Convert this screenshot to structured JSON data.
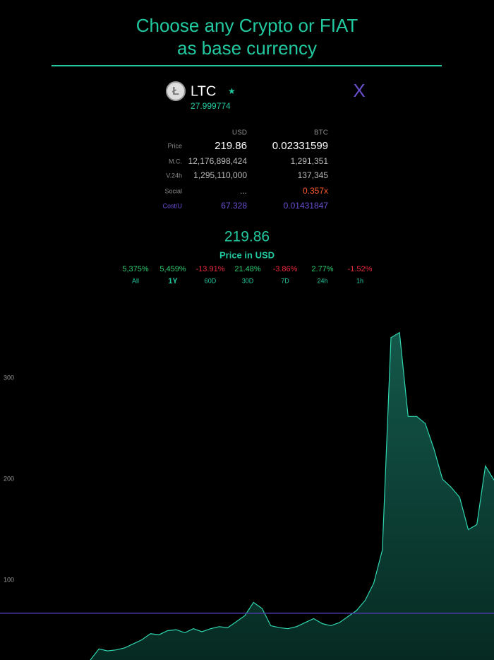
{
  "header": {
    "title_line1": "Choose any Crypto or FIAT",
    "title_line2": "as base currency"
  },
  "coin": {
    "symbol": "LTC",
    "star": "★",
    "close": "X",
    "amount": "27.999774"
  },
  "table": {
    "columns": [
      "USD",
      "BTC"
    ],
    "rows": [
      {
        "label": "Price",
        "usd": "219.86",
        "btc": "0.02331599"
      },
      {
        "label": "M.C.",
        "usd": "12,176,898,424",
        "btc": "1,291,351"
      },
      {
        "label": "V.24h",
        "usd": "1,295,110,000",
        "btc": "137,345"
      },
      {
        "label": "Social",
        "usd": "...",
        "btc": "0.357x"
      },
      {
        "label": "Cost/U",
        "usd": "67.328",
        "btc": "0.01431847"
      }
    ]
  },
  "price": {
    "value": "219.86",
    "caption": "Price in USD"
  },
  "periods": [
    {
      "label": "All",
      "change": "5,375%",
      "color": "#2ecc71"
    },
    {
      "label": "1Y",
      "change": "5,459%",
      "color": "#2ecc71",
      "selected": true
    },
    {
      "label": "60D",
      "change": "-13.91%",
      "color": "#e8283c"
    },
    {
      "label": "30D",
      "change": "21.48%",
      "color": "#2ecc71"
    },
    {
      "label": "7D",
      "change": "-3.86%",
      "color": "#e8283c"
    },
    {
      "label": "24h",
      "change": "2.77%",
      "color": "#2ecc71"
    },
    {
      "label": "1h",
      "change": "-1.52%",
      "color": "#e8283c"
    }
  ],
  "chart_data": {
    "type": "area",
    "color": "#2fd6b0",
    "ylim": [
      21,
      372
    ],
    "yticks": [
      100,
      200,
      300
    ],
    "reference_line": 67.328,
    "reference_color": "#4b3bb0",
    "values": [
      21,
      32,
      30,
      31,
      33,
      37,
      41,
      47,
      46,
      50,
      51,
      48,
      52,
      49,
      52,
      54,
      53,
      59,
      65,
      78,
      72,
      55,
      53,
      52,
      54,
      58,
      62,
      57,
      55,
      58,
      64,
      70,
      80,
      97,
      130,
      340,
      345,
      262,
      262,
      255,
      230,
      200,
      192,
      182,
      150,
      155,
      213,
      199
    ]
  }
}
